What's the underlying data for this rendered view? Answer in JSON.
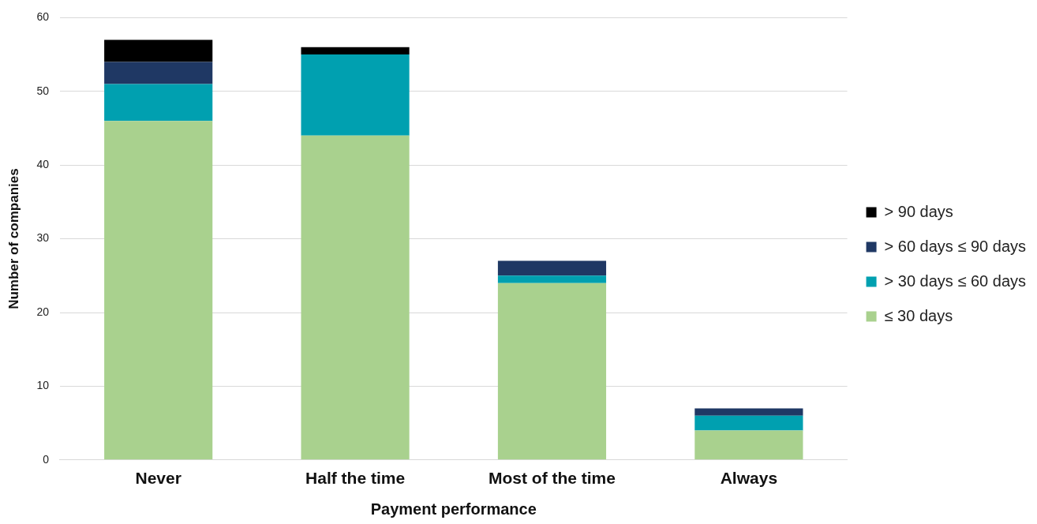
{
  "chart_data": {
    "type": "bar",
    "stacked": true,
    "xlabel": "Payment performance",
    "ylabel": "Number of companies",
    "categories": [
      "Never",
      "Half the time",
      "Most of the time",
      "Always"
    ],
    "series": [
      {
        "name": "≤ 30 days",
        "color": "#a9d18e",
        "values": [
          46,
          44,
          24,
          4
        ]
      },
      {
        "name": "> 30 days ≤ 60 days",
        "color": "#00a0b0",
        "values": [
          5,
          11,
          1,
          2
        ]
      },
      {
        "name": "> 60 days ≤ 90 days",
        "color": "#1f3864",
        "values": [
          3,
          0,
          2,
          1
        ]
      },
      {
        "name": "> 90 days",
        "color": "#000000",
        "values": [
          3,
          1,
          0,
          0
        ]
      }
    ],
    "ylim": [
      0,
      60
    ],
    "yticks": [
      0,
      10,
      20,
      30,
      40,
      50,
      60
    ],
    "grid": "y",
    "legend": "right"
  }
}
